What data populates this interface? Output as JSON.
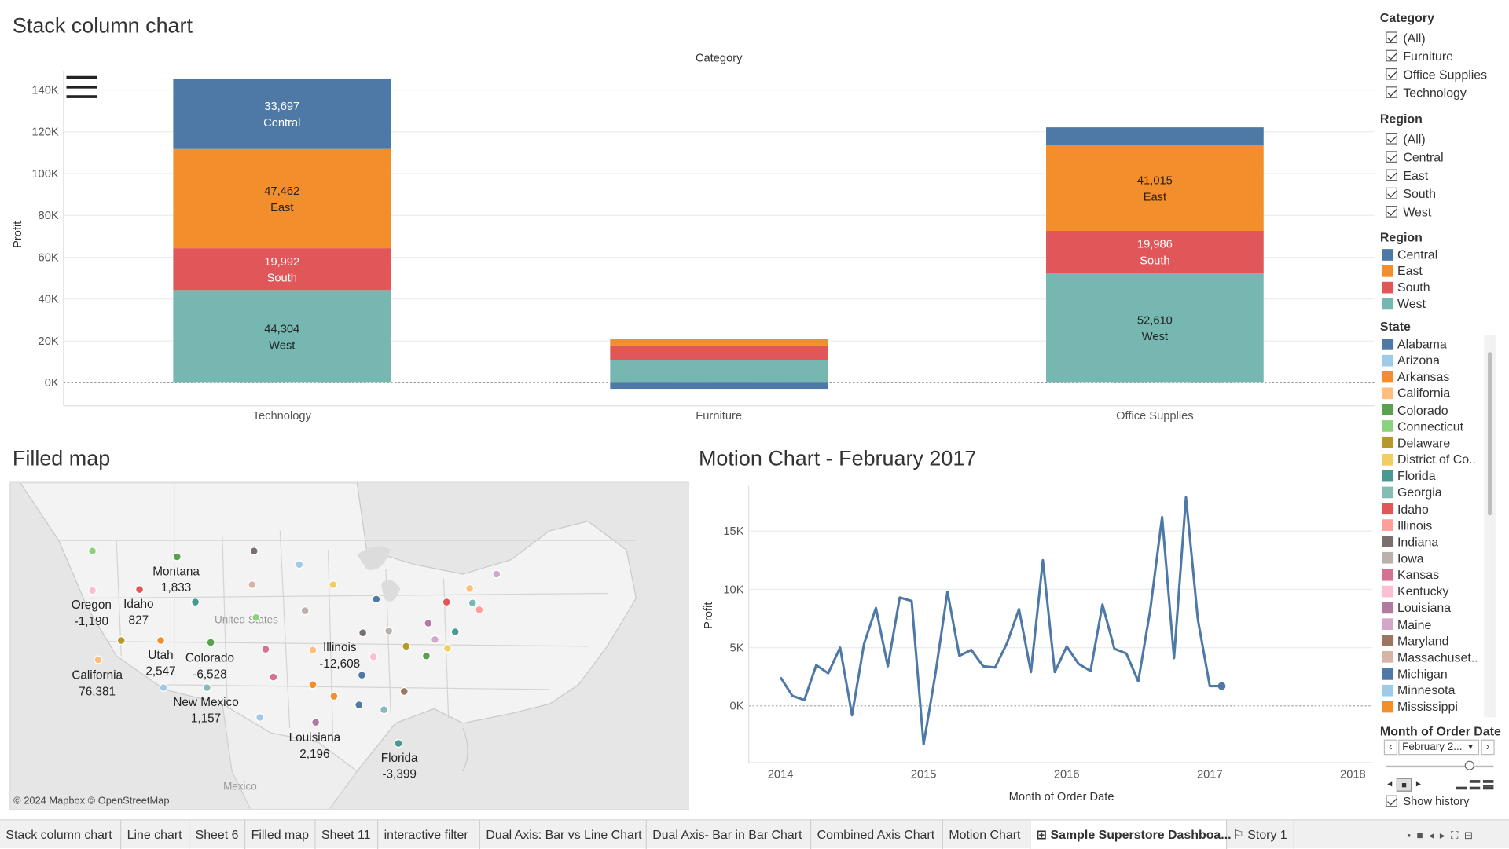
{
  "colors": {
    "Central": "#4e79a7",
    "East": "#f28e2b",
    "South": "#e15759",
    "West": "#76b7b2"
  },
  "stack_chart": {
    "title": "Stack column chart",
    "header": "Category",
    "ylabel": "Profit",
    "yticks": [
      "140K",
      "120K",
      "100K",
      "80K",
      "60K",
      "40K",
      "20K",
      "0K"
    ],
    "menu_icon": "hamburger-icon"
  },
  "map": {
    "title": "Filled map",
    "attribution": "© 2024 Mapbox © OpenStreetMap",
    "background_labels": {
      "country": "United States",
      "mexico": "Mexico"
    },
    "states": [
      {
        "name": "Montana",
        "value": "1,833"
      },
      {
        "name": "Oregon",
        "value": "-1,190"
      },
      {
        "name": "Idaho",
        "value": "827"
      },
      {
        "name": "Utah",
        "value": "2,547"
      },
      {
        "name": "Colorado",
        "value": "-6,528"
      },
      {
        "name": "California",
        "value": "76,381"
      },
      {
        "name": "Illinois",
        "value": "-12,608"
      },
      {
        "name": "New Mexico",
        "value": "1,157"
      },
      {
        "name": "Louisiana",
        "value": "2,196"
      },
      {
        "name": "Florida",
        "value": "-3,399"
      }
    ]
  },
  "motion": {
    "title": "Motion Chart - February 2017",
    "xlabel": "Month of Order Date",
    "ylabel": "Profit",
    "yticks": [
      "15K",
      "10K",
      "5K",
      "0K"
    ],
    "xticks": [
      "2014",
      "2015",
      "2016",
      "2017",
      "2018"
    ]
  },
  "filters": {
    "category": {
      "title": "Category",
      "items": [
        "(All)",
        "Furniture",
        "Office Supplies",
        "Technology"
      ]
    },
    "region": {
      "title": "Region",
      "items": [
        "(All)",
        "Central",
        "East",
        "South",
        "West"
      ]
    }
  },
  "region_legend": {
    "title": "Region",
    "items": [
      "Central",
      "East",
      "South",
      "West"
    ]
  },
  "state_legend": {
    "title": "State",
    "items": [
      {
        "name": "Alabama",
        "color": "#4e79a7"
      },
      {
        "name": "Arizona",
        "color": "#a0cbe8"
      },
      {
        "name": "Arkansas",
        "color": "#f28e2b"
      },
      {
        "name": "California",
        "color": "#ffbe7d"
      },
      {
        "name": "Colorado",
        "color": "#59a14f"
      },
      {
        "name": "Connecticut",
        "color": "#8cd17d"
      },
      {
        "name": "Delaware",
        "color": "#b6992d"
      },
      {
        "name": "District of Co..",
        "color": "#f1ce63"
      },
      {
        "name": "Florida",
        "color": "#499894"
      },
      {
        "name": "Georgia",
        "color": "#86bcb6"
      },
      {
        "name": "Idaho",
        "color": "#e15759"
      },
      {
        "name": "Illinois",
        "color": "#ff9d9a"
      },
      {
        "name": "Indiana",
        "color": "#79706e"
      },
      {
        "name": "Iowa",
        "color": "#bab0ac"
      },
      {
        "name": "Kansas",
        "color": "#d37295"
      },
      {
        "name": "Kentucky",
        "color": "#fabfd2"
      },
      {
        "name": "Louisiana",
        "color": "#b07aa1"
      },
      {
        "name": "Maine",
        "color": "#d4a6c8"
      },
      {
        "name": "Maryland",
        "color": "#9d7660"
      },
      {
        "name": "Massachuset..",
        "color": "#d7b5a6"
      },
      {
        "name": "Michigan",
        "color": "#4e79a7"
      },
      {
        "name": "Minnesota",
        "color": "#a0cbe8"
      },
      {
        "name": "Mississippi",
        "color": "#f28e2b"
      }
    ]
  },
  "date_control": {
    "title": "Month of Order Date",
    "value": "February 2...",
    "show_history": "Show history",
    "prev_icon": "chevron-left-icon",
    "next_icon": "chevron-right-icon"
  },
  "tabs": [
    {
      "label": "Stack column chart",
      "active": false
    },
    {
      "label": "Line chart",
      "active": false
    },
    {
      "label": "Sheet 6",
      "active": false
    },
    {
      "label": "Filled map",
      "active": false
    },
    {
      "label": "Sheet 11",
      "active": false
    },
    {
      "label": "interactive filter",
      "active": false
    },
    {
      "label": "Dual Axis: Bar vs Line Chart",
      "active": false
    },
    {
      "label": "Dual Axis- Bar in Bar Chart",
      "active": false
    },
    {
      "label": "Combined Axis Chart",
      "active": false
    },
    {
      "label": "Motion Chart",
      "active": false
    },
    {
      "label": "⊞ Sample Superstore Dashboa...",
      "active": true
    },
    {
      "label": "⚐ Story 1",
      "active": false
    }
  ],
  "chart_data": [
    {
      "type": "bar",
      "stacked": true,
      "header": "Category",
      "ylabel": "Profit",
      "ylim": [
        -3000,
        150000
      ],
      "categories": [
        "Technology",
        "Furniture",
        "Office Supplies"
      ],
      "series": [
        {
          "name": "West",
          "values": [
            44304,
            11000,
            52610
          ]
        },
        {
          "name": "South",
          "values": [
            19992,
            6800,
            19986
          ]
        },
        {
          "name": "East",
          "values": [
            47462,
            3000,
            41015
          ]
        },
        {
          "name": "Central",
          "values": [
            33697,
            -2900,
            8500
          ]
        }
      ],
      "labeled": [
        {
          "category": "Technology",
          "series": "Central",
          "value": "33,697"
        },
        {
          "category": "Technology",
          "series": "East",
          "value": "47,462"
        },
        {
          "category": "Technology",
          "series": "South",
          "value": "19,992"
        },
        {
          "category": "Technology",
          "series": "West",
          "value": "44,304"
        },
        {
          "category": "Office Supplies",
          "series": "East",
          "value": "41,015"
        },
        {
          "category": "Office Supplies",
          "series": "South",
          "value": "19,986"
        },
        {
          "category": "Office Supplies",
          "series": "West",
          "value": "52,610"
        }
      ]
    },
    {
      "type": "line",
      "title": "Motion Chart - February 2017",
      "xlabel": "Month of Order Date",
      "ylabel": "Profit",
      "ylim": [
        -4000,
        18500
      ],
      "xlim": [
        "2013-11",
        "2018-01"
      ],
      "x": [
        "2014-01",
        "2014-02",
        "2014-03",
        "2014-04",
        "2014-05",
        "2014-06",
        "2014-07",
        "2014-08",
        "2014-09",
        "2014-10",
        "2014-11",
        "2014-12",
        "2015-01",
        "2015-02",
        "2015-03",
        "2015-04",
        "2015-05",
        "2015-06",
        "2015-07",
        "2015-08",
        "2015-09",
        "2015-10",
        "2015-11",
        "2015-12",
        "2016-01",
        "2016-02",
        "2016-03",
        "2016-04",
        "2016-05",
        "2016-06",
        "2016-07",
        "2016-08",
        "2016-09",
        "2016-10",
        "2016-11",
        "2016-12",
        "2017-01",
        "2017-02"
      ],
      "values": [
        2450,
        860,
        500,
        3500,
        2800,
        5000,
        -800,
        5300,
        8400,
        3400,
        9300,
        9000,
        -3300,
        2800,
        9800,
        4300,
        4800,
        3400,
        3300,
        5400,
        8300,
        2900,
        12500,
        2900,
        5100,
        3600,
        3000,
        8700,
        4900,
        4500,
        2100,
        8200,
        16200,
        4100,
        17900,
        7400,
        1700,
        1700
      ]
    }
  ]
}
